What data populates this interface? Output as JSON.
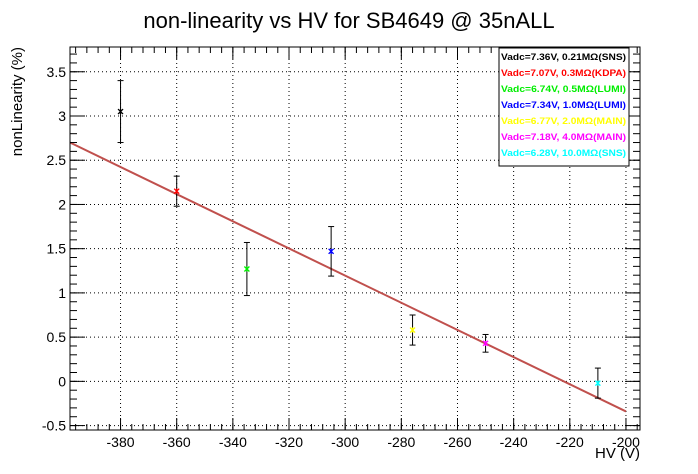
{
  "chart_data": {
    "type": "scatter",
    "title": "non-linearity vs HV for SB4649 @ 35nALL",
    "xlabel": "HV (V)",
    "ylabel": "nonLinearity (%)",
    "xlim": [
      -398,
      -195
    ],
    "ylim": [
      -0.55,
      3.78
    ],
    "xticks": [
      -380,
      -360,
      -340,
      -320,
      -300,
      -280,
      -260,
      -240,
      -220,
      -200
    ],
    "yticks": [
      -0.5,
      0,
      0.5,
      1,
      1.5,
      2,
      2.5,
      3,
      3.5
    ],
    "grid": true,
    "legend_position": "top-right",
    "series": [
      {
        "name": "Vadc=7.36V, 0.21MΩ(SNS)",
        "color": "#000000",
        "x": -380,
        "y": 3.05,
        "yerr": 0.35
      },
      {
        "name": "Vadc=7.07V, 0.3MΩ(KDPA)",
        "color": "#ff0000",
        "x": -360,
        "y": 2.15,
        "yerr": 0.17
      },
      {
        "name": "Vadc=6.74V, 0.5MΩ(LUMI)",
        "color": "#00ee00",
        "x": -335,
        "y": 1.27,
        "yerr": 0.3
      },
      {
        "name": "Vadc=7.34V, 1.0MΩ(LUMI)",
        "color": "#0000ff",
        "x": -305,
        "y": 1.47,
        "yerr": 0.28
      },
      {
        "name": "Vadc=6.77V, 2.0MΩ(MAIN)",
        "color": "#ffff00",
        "x": -276,
        "y": 0.58,
        "yerr": 0.17
      },
      {
        "name": "Vadc=7.18V, 4.0MΩ(MAIN)",
        "color": "#ff00ff",
        "x": -250,
        "y": 0.43,
        "yerr": 0.1
      },
      {
        "name": "Vadc=6.28V, 10.0MΩ(SNS)",
        "color": "#00ffff",
        "x": -210,
        "y": -0.02,
        "yerr": 0.17
      }
    ],
    "fit_line": {
      "color": "#c0504d",
      "x": [
        -398,
        -200
      ],
      "y": [
        2.7,
        -0.34
      ]
    }
  }
}
